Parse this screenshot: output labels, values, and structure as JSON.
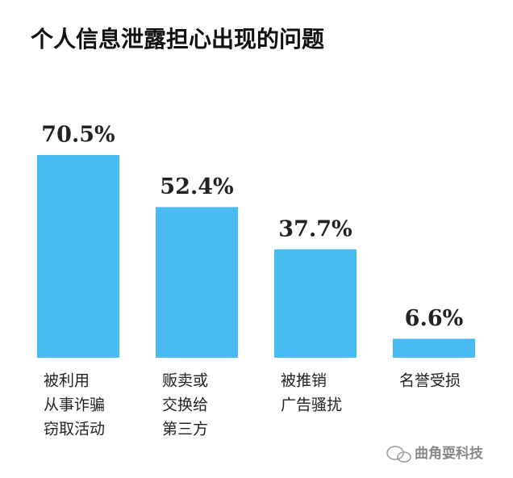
{
  "chart_data": {
    "type": "bar",
    "title": "个人信息泄露担心出现的问题",
    "categories": [
      [
        "被利用",
        "从事诈骗",
        "窃取活动"
      ],
      [
        "贩卖或",
        "交换给",
        "第三方"
      ],
      [
        "被推销",
        "广告骚扰"
      ],
      [
        "名誉受损"
      ]
    ],
    "values": [
      70.5,
      52.4,
      37.7,
      6.6
    ],
    "value_labels": [
      "70.5%",
      "52.4%",
      "37.7%",
      "6.6%"
    ],
    "color": "#48bcf2",
    "watermark": "曲角耍科技"
  }
}
